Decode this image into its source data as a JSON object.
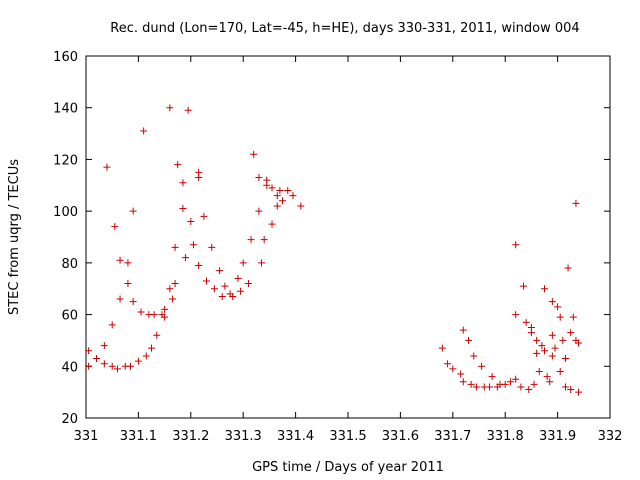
{
  "chart_data": {
    "type": "scatter",
    "title": "Rec. dund (Lon=170, Lat=-45, h=HE), days 330-331, 2011, window 004",
    "xlabel": "GPS time / Days of year 2011",
    "ylabel": "STEC from uqrg / TECUs",
    "xlim": [
      331,
      332
    ],
    "ylim": [
      20,
      160
    ],
    "xticks": [
      "331",
      "331.1",
      "331.2",
      "331.3",
      "331.4",
      "331.5",
      "331.6",
      "331.7",
      "331.8",
      "331.9",
      "332"
    ],
    "yticks": [
      "20",
      "40",
      "60",
      "80",
      "100",
      "120",
      "140",
      "160"
    ],
    "grid": false,
    "legend": "none",
    "marker_color": "#cc0000",
    "marker": "plus",
    "points": [
      [
        331.005,
        46
      ],
      [
        331.005,
        40
      ],
      [
        331.02,
        43
      ],
      [
        331.035,
        48
      ],
      [
        331.035,
        41
      ],
      [
        331.04,
        117
      ],
      [
        331.05,
        40
      ],
      [
        331.05,
        56
      ],
      [
        331.055,
        94
      ],
      [
        331.06,
        39
      ],
      [
        331.065,
        81
      ],
      [
        331.065,
        66
      ],
      [
        331.075,
        40
      ],
      [
        331.08,
        80
      ],
      [
        331.08,
        72
      ],
      [
        331.085,
        40
      ],
      [
        331.09,
        100
      ],
      [
        331.09,
        65
      ],
      [
        331.1,
        42
      ],
      [
        331.105,
        61
      ],
      [
        331.11,
        131
      ],
      [
        331.115,
        44
      ],
      [
        331.12,
        60
      ],
      [
        331.125,
        47
      ],
      [
        331.13,
        60
      ],
      [
        331.135,
        52
      ],
      [
        331.145,
        60
      ],
      [
        331.15,
        62
      ],
      [
        331.15,
        59
      ],
      [
        331.16,
        140
      ],
      [
        331.16,
        70
      ],
      [
        331.165,
        66
      ],
      [
        331.17,
        72
      ],
      [
        331.17,
        86
      ],
      [
        331.175,
        118
      ],
      [
        331.185,
        111
      ],
      [
        331.185,
        101
      ],
      [
        331.19,
        82
      ],
      [
        331.195,
        139
      ],
      [
        331.2,
        96
      ],
      [
        331.205,
        87
      ],
      [
        331.215,
        115
      ],
      [
        331.215,
        113
      ],
      [
        331.215,
        79
      ],
      [
        331.225,
        98
      ],
      [
        331.23,
        73
      ],
      [
        331.24,
        86
      ],
      [
        331.245,
        70
      ],
      [
        331.255,
        77
      ],
      [
        331.26,
        67
      ],
      [
        331.265,
        71
      ],
      [
        331.275,
        68
      ],
      [
        331.28,
        67
      ],
      [
        331.29,
        74
      ],
      [
        331.295,
        69
      ],
      [
        331.3,
        80
      ],
      [
        331.31,
        72
      ],
      [
        331.315,
        89
      ],
      [
        331.32,
        122
      ],
      [
        331.33,
        113
      ],
      [
        331.33,
        100
      ],
      [
        331.335,
        80
      ],
      [
        331.34,
        89
      ],
      [
        331.345,
        112
      ],
      [
        331.345,
        110
      ],
      [
        331.355,
        109
      ],
      [
        331.355,
        95
      ],
      [
        331.365,
        106
      ],
      [
        331.365,
        102
      ],
      [
        331.37,
        108
      ],
      [
        331.375,
        104
      ],
      [
        331.385,
        108
      ],
      [
        331.395,
        106
      ],
      [
        331.41,
        102
      ],
      [
        331.68,
        47
      ],
      [
        331.69,
        41
      ],
      [
        331.7,
        39
      ],
      [
        331.715,
        37
      ],
      [
        331.72,
        54
      ],
      [
        331.72,
        34
      ],
      [
        331.73,
        50
      ],
      [
        331.735,
        33
      ],
      [
        331.74,
        44
      ],
      [
        331.745,
        32
      ],
      [
        331.755,
        40
      ],
      [
        331.76,
        32
      ],
      [
        331.77,
        32
      ],
      [
        331.775,
        36
      ],
      [
        331.785,
        32
      ],
      [
        331.79,
        33
      ],
      [
        331.8,
        33
      ],
      [
        331.81,
        34
      ],
      [
        331.82,
        87
      ],
      [
        331.82,
        60
      ],
      [
        331.82,
        35
      ],
      [
        331.83,
        32
      ],
      [
        331.835,
        71
      ],
      [
        331.84,
        57
      ],
      [
        331.845,
        31
      ],
      [
        331.85,
        55
      ],
      [
        331.85,
        53
      ],
      [
        331.855,
        33
      ],
      [
        331.86,
        50
      ],
      [
        331.86,
        45
      ],
      [
        331.865,
        38
      ],
      [
        331.87,
        48
      ],
      [
        331.875,
        70
      ],
      [
        331.875,
        46
      ],
      [
        331.88,
        36
      ],
      [
        331.885,
        34
      ],
      [
        331.89,
        65
      ],
      [
        331.89,
        52
      ],
      [
        331.895,
        47
      ],
      [
        331.9,
        63
      ],
      [
        331.905,
        59
      ],
      [
        331.905,
        38
      ],
      [
        331.91,
        50
      ],
      [
        331.915,
        43
      ],
      [
        331.915,
        32
      ],
      [
        331.92,
        78
      ],
      [
        331.925,
        31
      ],
      [
        331.93,
        59
      ],
      [
        331.935,
        103
      ],
      [
        331.935,
        50
      ],
      [
        331.94,
        49
      ],
      [
        331.94,
        30
      ],
      [
        331.89,
        44
      ],
      [
        331.925,
        53
      ]
    ]
  }
}
